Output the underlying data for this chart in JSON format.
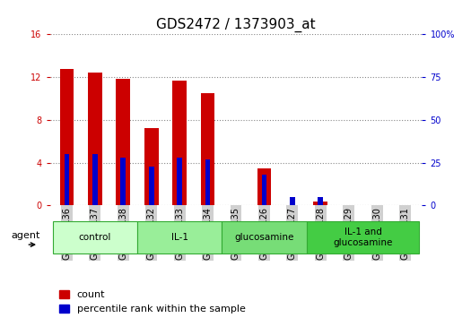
{
  "title": "GDS2472 / 1373903_at",
  "samples": [
    "GSM143136",
    "GSM143137",
    "GSM143138",
    "GSM143132",
    "GSM143133",
    "GSM143134",
    "GSM143135",
    "GSM143126",
    "GSM143127",
    "GSM143128",
    "GSM143129",
    "GSM143130",
    "GSM143131"
  ],
  "count_values": [
    12.8,
    12.4,
    11.8,
    7.2,
    11.7,
    10.5,
    0.0,
    3.5,
    0.0,
    0.4,
    0.0,
    0.0,
    0.0
  ],
  "percentile_values": [
    30,
    30,
    28,
    23,
    28,
    27,
    0,
    18,
    5,
    5,
    0,
    0,
    0
  ],
  "groups": [
    {
      "label": "control",
      "start": 0,
      "end": 3,
      "color": "#ccffcc"
    },
    {
      "label": "IL-1",
      "start": 3,
      "end": 6,
      "color": "#99ee99"
    },
    {
      "label": "glucosamine",
      "start": 6,
      "end": 9,
      "color": "#77dd77"
    },
    {
      "label": "IL-1 and\nglucosamine",
      "start": 9,
      "end": 13,
      "color": "#44cc44"
    }
  ],
  "bar_color_red": "#cc0000",
  "bar_color_blue": "#0000cc",
  "bar_width": 0.5,
  "blue_bar_width": 0.18,
  "ylim_left": [
    0,
    16
  ],
  "ylim_right": [
    0,
    100
  ],
  "yticks_left": [
    0,
    4,
    8,
    12,
    16
  ],
  "yticks_right": [
    0,
    25,
    50,
    75,
    100
  ],
  "grid_color": "#888888",
  "bg_color": "#ffffff",
  "title_fontsize": 11,
  "tick_fontsize": 7,
  "legend_fontsize": 8,
  "agent_label": "agent",
  "ycolor_left": "#cc0000",
  "ycolor_right": "#0000cc",
  "xlabel_bg": "#d0d0d0"
}
